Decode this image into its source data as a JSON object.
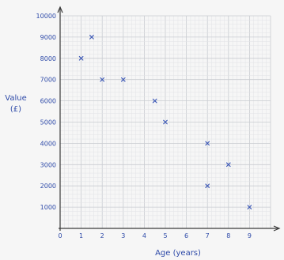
{
  "chart_data": {
    "type": "scatter",
    "title": "",
    "xlabel": "Age (years)",
    "ylabel_lines": [
      "Value",
      "(£)"
    ],
    "xlim": [
      0,
      10
    ],
    "ylim": [
      0,
      10000
    ],
    "x_ticks": [
      0,
      1,
      2,
      3,
      4,
      5,
      6,
      7,
      8,
      9
    ],
    "y_ticks": [
      1000,
      2000,
      3000,
      4000,
      5000,
      6000,
      7000,
      8000,
      9000,
      10000
    ],
    "grid": true,
    "marker": "x",
    "points": [
      {
        "x": 1,
        "y": 8000
      },
      {
        "x": 1.5,
        "y": 9000
      },
      {
        "x": 2,
        "y": 7000
      },
      {
        "x": 3,
        "y": 7000
      },
      {
        "x": 4.5,
        "y": 6000
      },
      {
        "x": 5,
        "y": 5000
      },
      {
        "x": 7,
        "y": 4000
      },
      {
        "x": 7,
        "y": 2000
      },
      {
        "x": 8,
        "y": 3000
      },
      {
        "x": 9,
        "y": 1000
      }
    ],
    "colors": {
      "marker": "#3b57b6",
      "text": "#2e4aa8",
      "axis": "#3a3a3a"
    }
  }
}
